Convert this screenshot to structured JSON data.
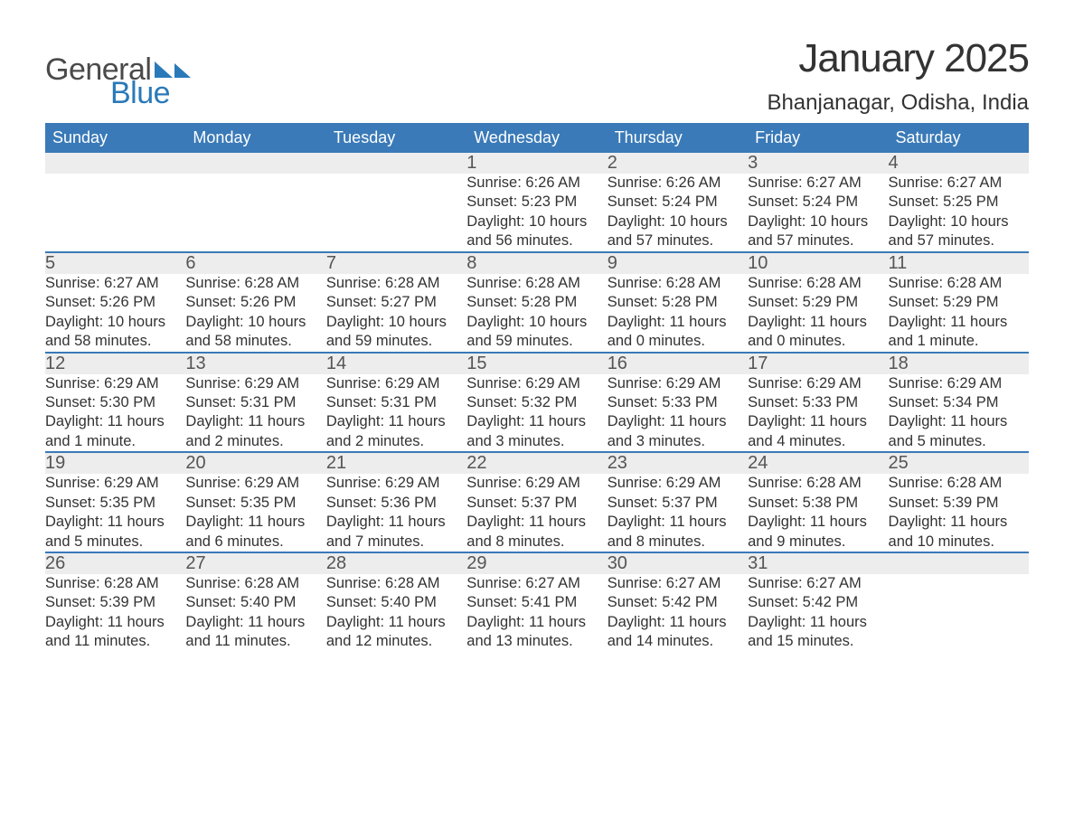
{
  "logo": {
    "text1": "General",
    "text2": "Blue",
    "accent_color": "#2a7ab9"
  },
  "title": "January 2025",
  "location": "Bhanjanagar, Odisha, India",
  "colors": {
    "header_bg": "#3a7ab8",
    "header_text": "#ffffff",
    "daynum_bg": "#ededed",
    "border": "#3a7ab8",
    "text": "#333333"
  },
  "weekdays": [
    "Sunday",
    "Monday",
    "Tuesday",
    "Wednesday",
    "Thursday",
    "Friday",
    "Saturday"
  ],
  "weeks": [
    [
      null,
      null,
      null,
      {
        "n": "1",
        "sunrise": "Sunrise: 6:26 AM",
        "sunset": "Sunset: 5:23 PM",
        "daylight": "Daylight: 10 hours and 56 minutes."
      },
      {
        "n": "2",
        "sunrise": "Sunrise: 6:26 AM",
        "sunset": "Sunset: 5:24 PM",
        "daylight": "Daylight: 10 hours and 57 minutes."
      },
      {
        "n": "3",
        "sunrise": "Sunrise: 6:27 AM",
        "sunset": "Sunset: 5:24 PM",
        "daylight": "Daylight: 10 hours and 57 minutes."
      },
      {
        "n": "4",
        "sunrise": "Sunrise: 6:27 AM",
        "sunset": "Sunset: 5:25 PM",
        "daylight": "Daylight: 10 hours and 57 minutes."
      }
    ],
    [
      {
        "n": "5",
        "sunrise": "Sunrise: 6:27 AM",
        "sunset": "Sunset: 5:26 PM",
        "daylight": "Daylight: 10 hours and 58 minutes."
      },
      {
        "n": "6",
        "sunrise": "Sunrise: 6:28 AM",
        "sunset": "Sunset: 5:26 PM",
        "daylight": "Daylight: 10 hours and 58 minutes."
      },
      {
        "n": "7",
        "sunrise": "Sunrise: 6:28 AM",
        "sunset": "Sunset: 5:27 PM",
        "daylight": "Daylight: 10 hours and 59 minutes."
      },
      {
        "n": "8",
        "sunrise": "Sunrise: 6:28 AM",
        "sunset": "Sunset: 5:28 PM",
        "daylight": "Daylight: 10 hours and 59 minutes."
      },
      {
        "n": "9",
        "sunrise": "Sunrise: 6:28 AM",
        "sunset": "Sunset: 5:28 PM",
        "daylight": "Daylight: 11 hours and 0 minutes."
      },
      {
        "n": "10",
        "sunrise": "Sunrise: 6:28 AM",
        "sunset": "Sunset: 5:29 PM",
        "daylight": "Daylight: 11 hours and 0 minutes."
      },
      {
        "n": "11",
        "sunrise": "Sunrise: 6:28 AM",
        "sunset": "Sunset: 5:29 PM",
        "daylight": "Daylight: 11 hours and 1 minute."
      }
    ],
    [
      {
        "n": "12",
        "sunrise": "Sunrise: 6:29 AM",
        "sunset": "Sunset: 5:30 PM",
        "daylight": "Daylight: 11 hours and 1 minute."
      },
      {
        "n": "13",
        "sunrise": "Sunrise: 6:29 AM",
        "sunset": "Sunset: 5:31 PM",
        "daylight": "Daylight: 11 hours and 2 minutes."
      },
      {
        "n": "14",
        "sunrise": "Sunrise: 6:29 AM",
        "sunset": "Sunset: 5:31 PM",
        "daylight": "Daylight: 11 hours and 2 minutes."
      },
      {
        "n": "15",
        "sunrise": "Sunrise: 6:29 AM",
        "sunset": "Sunset: 5:32 PM",
        "daylight": "Daylight: 11 hours and 3 minutes."
      },
      {
        "n": "16",
        "sunrise": "Sunrise: 6:29 AM",
        "sunset": "Sunset: 5:33 PM",
        "daylight": "Daylight: 11 hours and 3 minutes."
      },
      {
        "n": "17",
        "sunrise": "Sunrise: 6:29 AM",
        "sunset": "Sunset: 5:33 PM",
        "daylight": "Daylight: 11 hours and 4 minutes."
      },
      {
        "n": "18",
        "sunrise": "Sunrise: 6:29 AM",
        "sunset": "Sunset: 5:34 PM",
        "daylight": "Daylight: 11 hours and 5 minutes."
      }
    ],
    [
      {
        "n": "19",
        "sunrise": "Sunrise: 6:29 AM",
        "sunset": "Sunset: 5:35 PM",
        "daylight": "Daylight: 11 hours and 5 minutes."
      },
      {
        "n": "20",
        "sunrise": "Sunrise: 6:29 AM",
        "sunset": "Sunset: 5:35 PM",
        "daylight": "Daylight: 11 hours and 6 minutes."
      },
      {
        "n": "21",
        "sunrise": "Sunrise: 6:29 AM",
        "sunset": "Sunset: 5:36 PM",
        "daylight": "Daylight: 11 hours and 7 minutes."
      },
      {
        "n": "22",
        "sunrise": "Sunrise: 6:29 AM",
        "sunset": "Sunset: 5:37 PM",
        "daylight": "Daylight: 11 hours and 8 minutes."
      },
      {
        "n": "23",
        "sunrise": "Sunrise: 6:29 AM",
        "sunset": "Sunset: 5:37 PM",
        "daylight": "Daylight: 11 hours and 8 minutes."
      },
      {
        "n": "24",
        "sunrise": "Sunrise: 6:28 AM",
        "sunset": "Sunset: 5:38 PM",
        "daylight": "Daylight: 11 hours and 9 minutes."
      },
      {
        "n": "25",
        "sunrise": "Sunrise: 6:28 AM",
        "sunset": "Sunset: 5:39 PM",
        "daylight": "Daylight: 11 hours and 10 minutes."
      }
    ],
    [
      {
        "n": "26",
        "sunrise": "Sunrise: 6:28 AM",
        "sunset": "Sunset: 5:39 PM",
        "daylight": "Daylight: 11 hours and 11 minutes."
      },
      {
        "n": "27",
        "sunrise": "Sunrise: 6:28 AM",
        "sunset": "Sunset: 5:40 PM",
        "daylight": "Daylight: 11 hours and 11 minutes."
      },
      {
        "n": "28",
        "sunrise": "Sunrise: 6:28 AM",
        "sunset": "Sunset: 5:40 PM",
        "daylight": "Daylight: 11 hours and 12 minutes."
      },
      {
        "n": "29",
        "sunrise": "Sunrise: 6:27 AM",
        "sunset": "Sunset: 5:41 PM",
        "daylight": "Daylight: 11 hours and 13 minutes."
      },
      {
        "n": "30",
        "sunrise": "Sunrise: 6:27 AM",
        "sunset": "Sunset: 5:42 PM",
        "daylight": "Daylight: 11 hours and 14 minutes."
      },
      {
        "n": "31",
        "sunrise": "Sunrise: 6:27 AM",
        "sunset": "Sunset: 5:42 PM",
        "daylight": "Daylight: 11 hours and 15 minutes."
      },
      null
    ]
  ]
}
